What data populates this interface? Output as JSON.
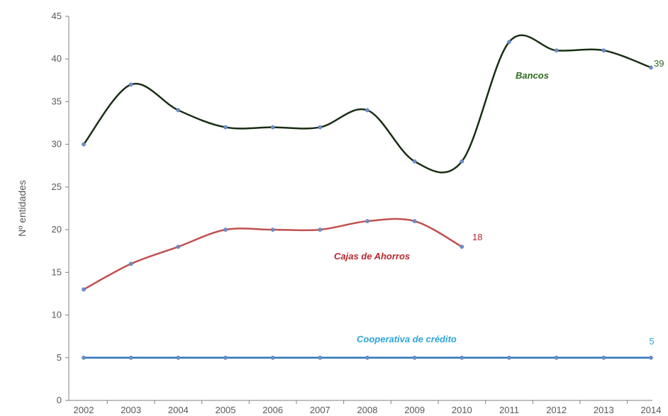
{
  "chart_data": {
    "type": "line",
    "categories": [
      "2002",
      "2003",
      "2004",
      "2005",
      "2006",
      "2007",
      "2008",
      "2009",
      "2010",
      "2011",
      "2012",
      "2013",
      "2014"
    ],
    "ylabel": "Nº entidades",
    "ylim": [
      0,
      45
    ],
    "yticks": [
      0,
      5,
      10,
      15,
      20,
      25,
      30,
      35,
      40,
      45
    ],
    "grid": false,
    "series": [
      {
        "name": "Bancos",
        "color": "#1a2e14",
        "label_color": "#2e6b1f",
        "values": [
          30,
          37,
          34,
          32,
          32,
          32,
          34,
          28,
          28,
          42,
          41,
          41,
          39
        ],
        "end_label": "39"
      },
      {
        "name": "Cajas de Ahorros",
        "color": "#c0504d",
        "label_color": "#b7282e",
        "values": [
          13,
          16,
          18,
          20,
          20,
          20,
          21,
          21,
          18,
          null,
          null,
          null,
          null
        ],
        "end_label": "18"
      },
      {
        "name": "Cooperativa de crédito",
        "color": "#2e75b6",
        "label_color": "#2ea3d6",
        "values": [
          5,
          5,
          5,
          5,
          5,
          5,
          5,
          5,
          5,
          5,
          5,
          5,
          5
        ],
        "end_label": "5"
      }
    ]
  }
}
